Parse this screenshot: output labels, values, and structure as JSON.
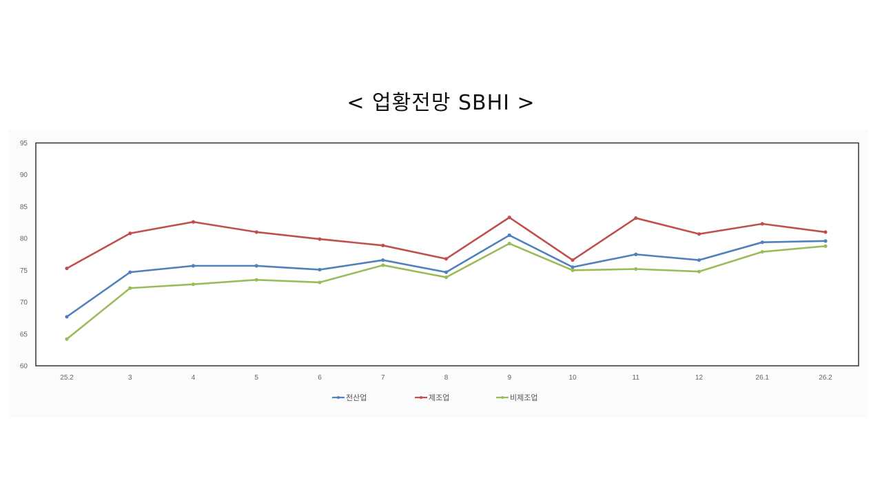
{
  "title": "< 업황전망 SBHI >",
  "chart_data": {
    "type": "line",
    "title": "< 업황전망 SBHI >",
    "xlabel": "",
    "ylabel": "",
    "ylim": [
      60,
      95
    ],
    "yticks": [
      95,
      90,
      85,
      80,
      75,
      70,
      65,
      60
    ],
    "grid": false,
    "legend_position": "bottom",
    "categories": [
      "25.2",
      "3",
      "4",
      "5",
      "6",
      "7",
      "8",
      "9",
      "10",
      "11",
      "12",
      "26.1",
      "26.2"
    ],
    "series": [
      {
        "name": "전산업",
        "color": "#4f81bd",
        "values": [
          67.7,
          74.7,
          75.7,
          75.7,
          75.1,
          76.6,
          74.7,
          80.5,
          75.5,
          77.5,
          76.6,
          79.4,
          79.6
        ]
      },
      {
        "name": "제조업",
        "color": "#c0504d",
        "values": [
          75.3,
          80.8,
          82.6,
          81.0,
          79.9,
          78.9,
          76.8,
          83.3,
          76.6,
          83.2,
          80.7,
          82.3,
          81.0
        ]
      },
      {
        "name": "비제조업",
        "color": "#9bbb59",
        "values": [
          64.2,
          72.2,
          72.8,
          73.5,
          73.1,
          75.8,
          73.9,
          79.2,
          75.0,
          75.2,
          74.8,
          77.9,
          78.8
        ]
      }
    ]
  }
}
